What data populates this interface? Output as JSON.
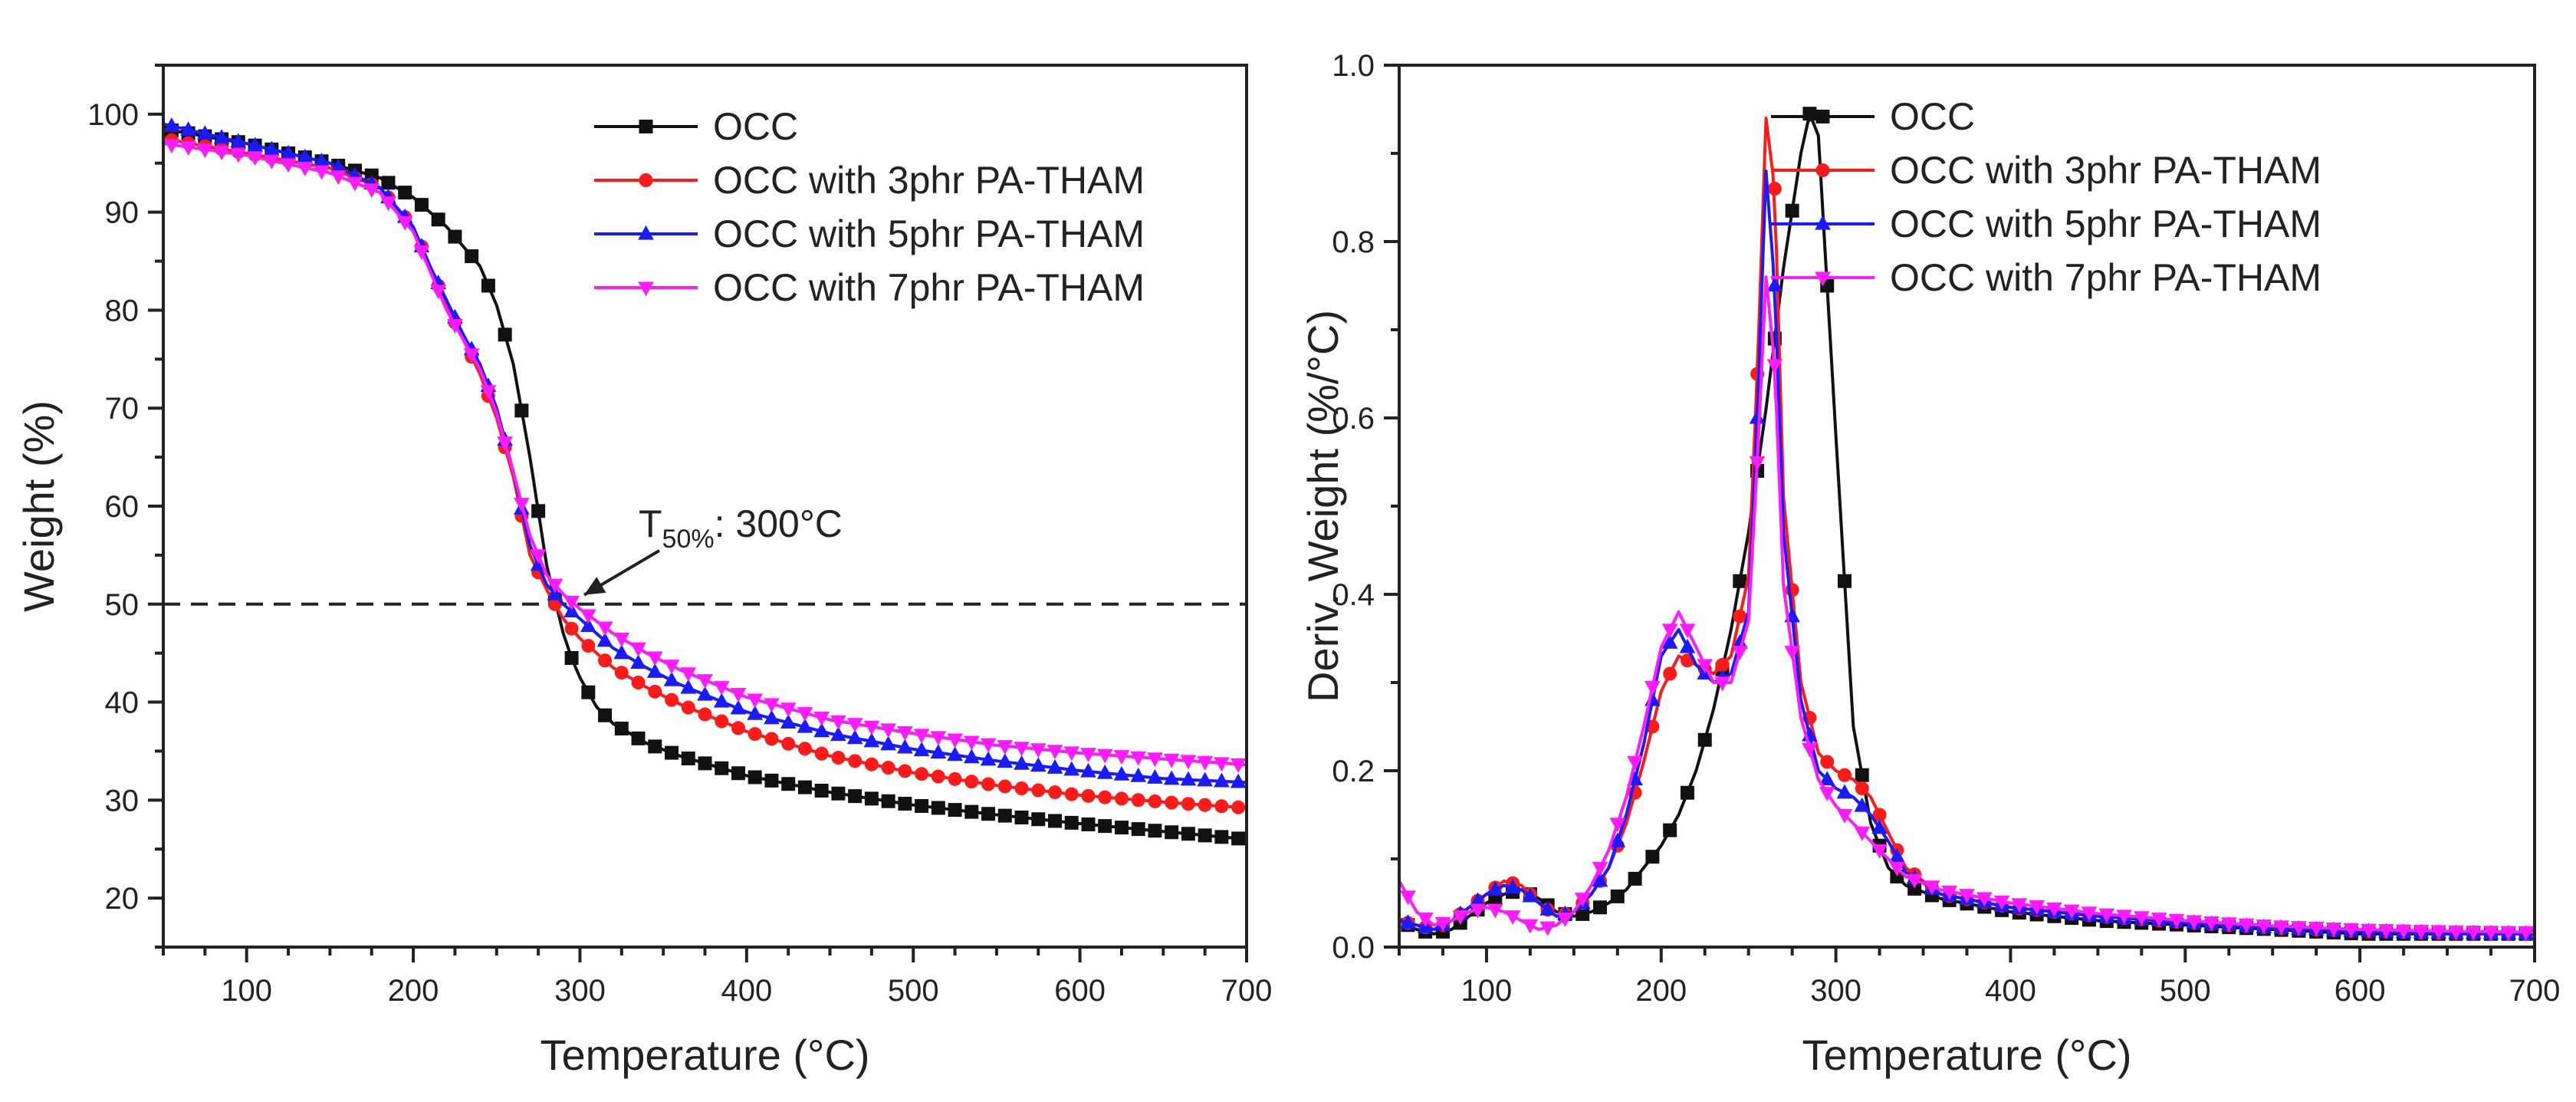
{
  "chart_data": [
    {
      "type": "line",
      "title": "",
      "xlabel": "Temperature (°C)",
      "ylabel": "Weight (%)",
      "xlim": [
        50,
        700
      ],
      "ylim": [
        15,
        105
      ],
      "x_ticks": [
        100,
        200,
        300,
        400,
        500,
        600,
        700
      ],
      "y_ticks": [
        20,
        30,
        40,
        50,
        60,
        70,
        80,
        90,
        100
      ],
      "legend_position": "top-right",
      "reference_line": {
        "y": 50,
        "style": "dashed"
      },
      "annotation": {
        "prefix": "T",
        "subscript": "50%",
        "suffix": ": 300°C",
        "x": 297,
        "y": 50
      },
      "series": [
        {
          "name": "OCC",
          "color": "#111111",
          "marker": "square",
          "x": [
            50,
            100,
            150,
            180,
            200,
            220,
            240,
            250,
            260,
            270,
            280,
            290,
            295,
            300,
            310,
            320,
            340,
            360,
            380,
            400,
            450,
            500,
            550,
            600,
            650,
            700
          ],
          "y": [
            98.5,
            97,
            95,
            93.5,
            91.5,
            88.5,
            84.5,
            80.5,
            74.5,
            65,
            54,
            47,
            44.5,
            42.5,
            39.5,
            37.8,
            35.8,
            34.5,
            33.5,
            32.5,
            30.8,
            29.5,
            28.5,
            27.6,
            26.8,
            26
          ]
        },
        {
          "name": "OCC with 3phr PA-THAM",
          "color": "#ff1a1a",
          "marker": "circle",
          "x": [
            50,
            100,
            150,
            180,
            200,
            210,
            220,
            230,
            240,
            250,
            260,
            270,
            280,
            290,
            300,
            320,
            340,
            360,
            400,
            450,
            500,
            550,
            600,
            650,
            700
          ],
          "y": [
            97.5,
            96,
            94.5,
            92.5,
            88.5,
            84.5,
            80.5,
            77,
            73.5,
            69,
            63,
            55,
            51.5,
            48.5,
            46.5,
            43.5,
            41.5,
            39.8,
            37,
            34.5,
            32.8,
            31.5,
            30.5,
            29.8,
            29.2
          ]
        },
        {
          "name": "OCC with 5phr PA-THAM",
          "color": "#1a1aff",
          "marker": "triangle-up",
          "x": [
            50,
            100,
            150,
            180,
            200,
            210,
            220,
            230,
            240,
            250,
            260,
            270,
            280,
            290,
            300,
            320,
            340,
            360,
            400,
            450,
            500,
            550,
            600,
            650,
            700
          ],
          "y": [
            99,
            97,
            95,
            92.5,
            88.5,
            84.5,
            81,
            77.5,
            74.5,
            70,
            63.5,
            56,
            52,
            50,
            48.5,
            45.5,
            43.5,
            41.8,
            39,
            36.8,
            35.2,
            34,
            33,
            32.2,
            31.8
          ]
        },
        {
          "name": "OCC with 7phr PA-THAM",
          "color": "#ff1aff",
          "marker": "triangle-down",
          "x": [
            50,
            100,
            150,
            180,
            200,
            210,
            220,
            230,
            240,
            250,
            260,
            270,
            280,
            290,
            300,
            320,
            340,
            360,
            400,
            450,
            500,
            550,
            600,
            650,
            700
          ],
          "y": [
            97,
            95.8,
            94,
            92,
            88,
            84,
            80,
            77,
            74,
            69.5,
            63.5,
            57,
            53,
            51,
            49.5,
            47,
            45,
            43.3,
            40.5,
            38.2,
            36.8,
            35.6,
            34.8,
            34.2,
            33.6
          ]
        }
      ]
    },
    {
      "type": "line",
      "title": "",
      "xlabel": "Temperature (°C)",
      "ylabel": "Deriv. Weight (%/°C)",
      "xlim": [
        50,
        700
      ],
      "ylim": [
        0,
        1.0
      ],
      "x_ticks": [
        100,
        200,
        300,
        400,
        500,
        600,
        700
      ],
      "y_ticks": [
        0.0,
        0.2,
        0.4,
        0.6,
        0.8,
        1.0
      ],
      "y_tick_labels": [
        "0.0",
        "0.2",
        "0.4",
        "0.6",
        "0.8",
        "1.0"
      ],
      "legend_position": "top-right",
      "series": [
        {
          "name": "OCC",
          "color": "#111111",
          "marker": "square",
          "x": [
            50,
            60,
            70,
            80,
            90,
            100,
            110,
            120,
            130,
            140,
            150,
            160,
            170,
            180,
            190,
            200,
            210,
            220,
            230,
            240,
            250,
            260,
            270,
            280,
            285,
            290,
            300,
            310,
            320,
            330,
            340,
            360,
            400,
            450,
            500,
            550,
            600,
            650,
            700
          ],
          "y": [
            0.03,
            0.02,
            0.015,
            0.02,
            0.035,
            0.05,
            0.06,
            0.065,
            0.055,
            0.04,
            0.035,
            0.04,
            0.05,
            0.065,
            0.09,
            0.115,
            0.15,
            0.2,
            0.27,
            0.36,
            0.47,
            0.61,
            0.77,
            0.9,
            0.945,
            0.92,
            0.58,
            0.25,
            0.14,
            0.09,
            0.07,
            0.055,
            0.04,
            0.03,
            0.025,
            0.02,
            0.015,
            0.015,
            0.015
          ]
        },
        {
          "name": "OCC with 3phr PA-THAM",
          "color": "#ff1a1a",
          "marker": "circle",
          "x": [
            50,
            60,
            70,
            80,
            90,
            100,
            110,
            120,
            130,
            140,
            150,
            160,
            170,
            180,
            190,
            200,
            210,
            220,
            230,
            240,
            250,
            255,
            260,
            265,
            270,
            280,
            290,
            300,
            310,
            320,
            330,
            340,
            360,
            400,
            450,
            500,
            550,
            600,
            650,
            700
          ],
          "y": [
            0.03,
            0.025,
            0.02,
            0.03,
            0.045,
            0.06,
            0.075,
            0.07,
            0.05,
            0.035,
            0.04,
            0.06,
            0.09,
            0.14,
            0.21,
            0.29,
            0.33,
            0.32,
            0.31,
            0.33,
            0.42,
            0.65,
            0.94,
            0.86,
            0.51,
            0.3,
            0.22,
            0.2,
            0.19,
            0.17,
            0.13,
            0.09,
            0.06,
            0.045,
            0.035,
            0.028,
            0.022,
            0.018,
            0.016,
            0.015
          ]
        },
        {
          "name": "OCC with 5phr PA-THAM",
          "color": "#1a1aff",
          "marker": "triangle-up",
          "x": [
            50,
            60,
            70,
            80,
            90,
            100,
            110,
            120,
            130,
            140,
            150,
            160,
            170,
            180,
            190,
            200,
            210,
            220,
            230,
            240,
            250,
            255,
            260,
            265,
            270,
            280,
            290,
            300,
            310,
            320,
            330,
            340,
            360,
            400,
            450,
            500,
            550,
            600,
            650,
            700
          ],
          "y": [
            0.03,
            0.025,
            0.02,
            0.03,
            0.045,
            0.06,
            0.07,
            0.065,
            0.05,
            0.035,
            0.04,
            0.06,
            0.09,
            0.15,
            0.23,
            0.33,
            0.36,
            0.32,
            0.3,
            0.31,
            0.38,
            0.6,
            0.88,
            0.75,
            0.47,
            0.28,
            0.2,
            0.18,
            0.17,
            0.15,
            0.12,
            0.085,
            0.06,
            0.045,
            0.035,
            0.028,
            0.022,
            0.018,
            0.016,
            0.015
          ]
        },
        {
          "name": "OCC with 7phr PA-THAM",
          "color": "#ff1aff",
          "marker": "triangle-down",
          "x": [
            50,
            60,
            70,
            80,
            90,
            100,
            110,
            120,
            130,
            140,
            150,
            160,
            170,
            180,
            190,
            200,
            210,
            220,
            230,
            240,
            250,
            255,
            260,
            265,
            270,
            280,
            290,
            300,
            310,
            320,
            330,
            340,
            360,
            400,
            450,
            500,
            550,
            600,
            650,
            700
          ],
          "y": [
            0.075,
            0.04,
            0.025,
            0.03,
            0.04,
            0.045,
            0.04,
            0.03,
            0.02,
            0.025,
            0.04,
            0.07,
            0.11,
            0.17,
            0.25,
            0.34,
            0.38,
            0.34,
            0.3,
            0.3,
            0.37,
            0.55,
            0.76,
            0.66,
            0.41,
            0.26,
            0.19,
            0.16,
            0.14,
            0.12,
            0.1,
            0.08,
            0.065,
            0.05,
            0.038,
            0.03,
            0.024,
            0.02,
            0.018,
            0.017
          ]
        }
      ]
    }
  ]
}
